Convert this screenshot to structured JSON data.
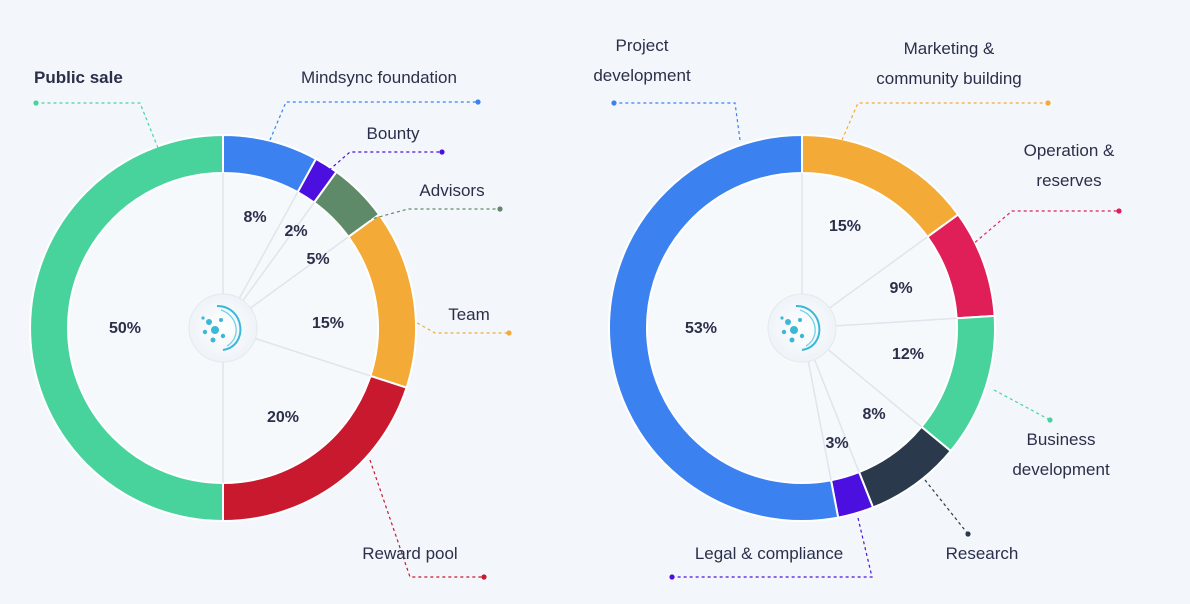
{
  "chart_data": [
    {
      "type": "pie",
      "title": "",
      "slices": [
        {
          "label": "Mindsync foundation",
          "value": 8,
          "value_label": "8%",
          "color": "#3b82f0"
        },
        {
          "label": "Bounty",
          "value": 2,
          "value_label": "2%",
          "color": "#4b10e0"
        },
        {
          "label": "Advisors",
          "value": 5,
          "value_label": "5%",
          "color": "#5e8a6a"
        },
        {
          "label": "Team",
          "value": 15,
          "value_label": "15%",
          "color": "#f4aa36"
        },
        {
          "label": "Reward pool",
          "value": 20,
          "value_label": "20%",
          "color": "#c8192f"
        },
        {
          "label": "Public sale",
          "value": 50,
          "value_label": "50%",
          "color": "#48d39d"
        }
      ]
    },
    {
      "type": "pie",
      "title": "",
      "slices": [
        {
          "label": "Marketing & community building",
          "label_lines": [
            "Marketing &",
            "community building"
          ],
          "value": 15,
          "value_label": "15%",
          "color": "#f4aa36"
        },
        {
          "label": "Operation & reserves",
          "label_lines": [
            "Operation &",
            "reserves"
          ],
          "value": 9,
          "value_label": "9%",
          "color": "#e01f58"
        },
        {
          "label": "Business development",
          "label_lines": [
            "Business",
            "development"
          ],
          "value": 12,
          "value_label": "12%",
          "color": "#48d39d"
        },
        {
          "label": "Research",
          "label_lines": [
            "Research"
          ],
          "value": 8,
          "value_label": "8%",
          "color": "#2a3a4c"
        },
        {
          "label": "Legal & compliance",
          "label_lines": [
            "Legal & compliance"
          ],
          "value": 3,
          "value_label": "3%",
          "color": "#4b10e0"
        },
        {
          "label": "Project development",
          "label_lines": [
            "Project",
            "development"
          ],
          "value": 53,
          "value_label": "53%",
          "color": "#3b82f0"
        }
      ]
    }
  ]
}
